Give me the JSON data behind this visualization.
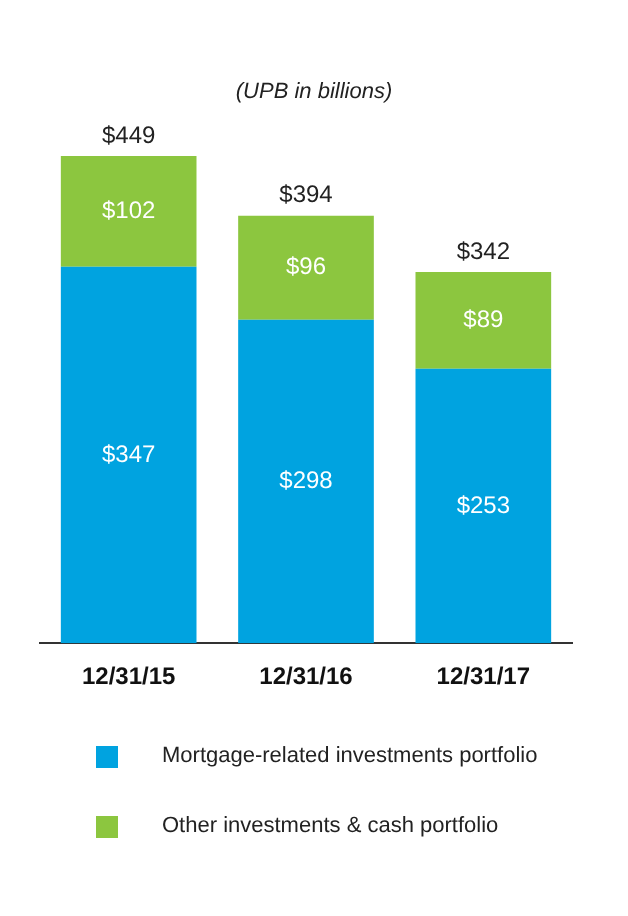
{
  "chart_data": {
    "type": "bar",
    "title": "(UPB in billions)",
    "categories": [
      "12/31/15",
      "12/31/16",
      "12/31/17"
    ],
    "stacked": true,
    "series": [
      {
        "name": "Mortgage-related investments portfolio",
        "color": "#00a3e0",
        "values": [
          347,
          298,
          253
        ],
        "value_labels": [
          "$347",
          "$298",
          "$253"
        ]
      },
      {
        "name": "Other investments & cash portfolio",
        "color": "#8cc63f",
        "values": [
          102,
          96,
          89
        ],
        "value_labels": [
          "$102",
          "$96",
          "$89"
        ]
      }
    ],
    "totals": [
      "$449",
      "$394",
      "$342"
    ],
    "grid": false,
    "legend": "bottom"
  }
}
